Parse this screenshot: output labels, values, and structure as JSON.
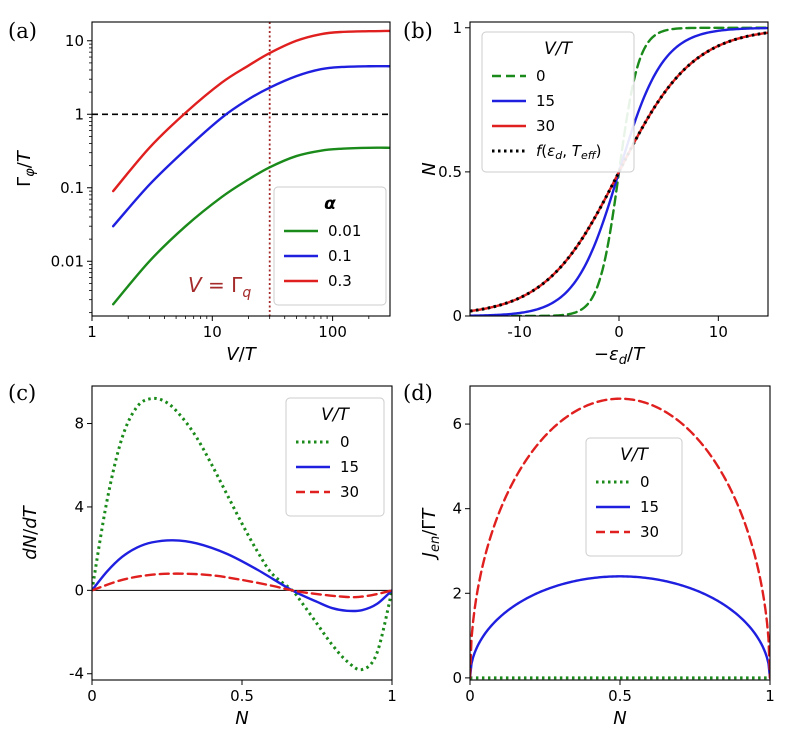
{
  "chart_data": [
    {
      "panel": "(a)",
      "type": "line",
      "xscale": "log",
      "yscale": "log",
      "xlabel": "V/T",
      "ylabel": "Γφ/T",
      "xlim": [
        1,
        300
      ],
      "ylim": [
        0.0018,
        18
      ],
      "xticks": [
        {
          "v": 1,
          "label": "1"
        },
        {
          "v": 10,
          "label": "10"
        },
        {
          "v": 100,
          "label": "100"
        }
      ],
      "yticks": [
        {
          "v": 0.01,
          "label": "0.01"
        },
        {
          "v": 0.1,
          "label": "0.1"
        },
        {
          "v": 1,
          "label": "1"
        },
        {
          "v": 10,
          "label": "10"
        }
      ],
      "hline": {
        "y": 1,
        "style": "dashed",
        "color": "#000000"
      },
      "vline": {
        "x": 30,
        "style": "dotted",
        "color": "#a52a2a"
      },
      "annotation": {
        "text": "V = Γq",
        "color": "#a52a2a"
      },
      "legend": {
        "title": "α",
        "position": "lower right"
      },
      "series": [
        {
          "name": "0.01",
          "color": "#1a8a1a",
          "style": "solid",
          "x": [
            1.5,
            3,
            6,
            12,
            20,
            30,
            50,
            80,
            120,
            200,
            300
          ],
          "y": [
            0.0026,
            0.01,
            0.03,
            0.075,
            0.13,
            0.19,
            0.27,
            0.32,
            0.34,
            0.35,
            0.35
          ]
        },
        {
          "name": "0.1",
          "color": "#1f1fe0",
          "style": "solid",
          "x": [
            1.5,
            3,
            6,
            12,
            20,
            30,
            50,
            80,
            120,
            200,
            300
          ],
          "y": [
            0.03,
            0.11,
            0.33,
            0.9,
            1.6,
            2.3,
            3.3,
            4.1,
            4.4,
            4.5,
            4.5
          ]
        },
        {
          "name": "0.3",
          "color": "#e01f1f",
          "style": "solid",
          "x": [
            1.5,
            3,
            6,
            12,
            20,
            30,
            50,
            80,
            120,
            200,
            300
          ],
          "y": [
            0.09,
            0.35,
            1.05,
            2.7,
            4.6,
            6.8,
            10,
            12.3,
            13.2,
            13.5,
            13.6
          ]
        }
      ]
    },
    {
      "panel": "(b)",
      "type": "line",
      "xlabel": "−εd/T",
      "ylabel": "N",
      "xlim": [
        -15,
        15
      ],
      "ylim": [
        0,
        1.02
      ],
      "xticks": [
        {
          "v": -10,
          "label": "-10"
        },
        {
          "v": 0,
          "label": "0"
        },
        {
          "v": 10,
          "label": "10"
        }
      ],
      "yticks": [
        {
          "v": 0,
          "label": "0"
        },
        {
          "v": 0.5,
          "label": "0.5"
        },
        {
          "v": 1,
          "label": "1"
        }
      ],
      "legend": {
        "title": "V/T",
        "position": "upper left"
      },
      "series": [
        {
          "name": "0",
          "color": "#1a8a1a",
          "style": "dashed",
          "fn": "fermi",
          "T": 1
        },
        {
          "name": "15",
          "color": "#1f1fe0",
          "style": "solid",
          "fn": "fermi",
          "T": 2.2
        },
        {
          "name": "30",
          "color": "#e01f1f",
          "style": "solid",
          "fn": "fermi",
          "T": 3.7
        },
        {
          "name": "f(εd, Teff)",
          "color": "#000000",
          "style": "dotted",
          "fn": "fermi",
          "T": 3.7
        }
      ]
    },
    {
      "panel": "(c)",
      "type": "line",
      "xlabel": "N",
      "ylabel": "dN/dT",
      "xlim": [
        0,
        1
      ],
      "ylim": [
        -4.3,
        9.8
      ],
      "xticks": [
        {
          "v": 0,
          "label": "0"
        },
        {
          "v": 0.5,
          "label": "0.5"
        },
        {
          "v": 1,
          "label": "1"
        }
      ],
      "yticks": [
        {
          "v": -4,
          "label": "-4"
        },
        {
          "v": 0,
          "label": "0"
        },
        {
          "v": 4,
          "label": "4"
        },
        {
          "v": 8,
          "label": "8"
        }
      ],
      "hline": {
        "y": 0,
        "style": "solid",
        "color": "#000000"
      },
      "legend": {
        "title": "V/T",
        "position": "upper right"
      },
      "series": [
        {
          "name": "0",
          "color": "#1a8a1a",
          "style": "dotted",
          "x": [
            0,
            0.05,
            0.1,
            0.15,
            0.2,
            0.25,
            0.3,
            0.35,
            0.4,
            0.45,
            0.5,
            0.55,
            0.6,
            0.667,
            0.7,
            0.75,
            0.8,
            0.85,
            0.9,
            0.95,
            1
          ],
          "y": [
            0,
            4.3,
            7.3,
            8.8,
            9.2,
            9.0,
            8.3,
            7.3,
            6.0,
            4.6,
            3.2,
            1.9,
            0.8,
            0,
            -0.6,
            -1.6,
            -2.6,
            -3.4,
            -3.8,
            -3.0,
            0
          ]
        },
        {
          "name": "15",
          "color": "#1f1fe0",
          "style": "solid",
          "x": [
            0,
            0.05,
            0.1,
            0.15,
            0.2,
            0.27,
            0.35,
            0.45,
            0.55,
            0.667,
            0.75,
            0.8,
            0.85,
            0.9,
            0.95,
            1
          ],
          "y": [
            0,
            0.9,
            1.6,
            2.05,
            2.3,
            2.4,
            2.25,
            1.75,
            1.0,
            0,
            -0.55,
            -0.85,
            -0.98,
            -0.95,
            -0.65,
            0
          ]
        },
        {
          "name": "30",
          "color": "#e01f1f",
          "style": "dashed",
          "x": [
            0,
            0.1,
            0.2,
            0.3,
            0.4,
            0.5,
            0.6,
            0.667,
            0.75,
            0.85,
            0.9,
            0.95,
            1
          ],
          "y": [
            0,
            0.5,
            0.75,
            0.8,
            0.72,
            0.5,
            0.22,
            0,
            -0.18,
            -0.32,
            -0.3,
            -0.18,
            0
          ]
        }
      ]
    },
    {
      "panel": "(d)",
      "type": "line",
      "xlabel": "N",
      "ylabel": "Jen/ΓT",
      "xlim": [
        0,
        1
      ],
      "ylim": [
        -0.05,
        6.9
      ],
      "xticks": [
        {
          "v": 0,
          "label": "0"
        },
        {
          "v": 0.5,
          "label": "0.5"
        },
        {
          "v": 1,
          "label": "1"
        }
      ],
      "yticks": [
        {
          "v": 0,
          "label": "0"
        },
        {
          "v": 2,
          "label": "2"
        },
        {
          "v": 4,
          "label": "4"
        },
        {
          "v": 6,
          "label": "6"
        }
      ],
      "legend": {
        "title": "V/T",
        "position": "center"
      },
      "series": [
        {
          "name": "0",
          "color": "#1a8a1a",
          "style": "dotted",
          "x": [
            0,
            1
          ],
          "y": [
            0,
            0
          ]
        },
        {
          "name": "15",
          "color": "#1f1fe0",
          "style": "solid",
          "fn": "dome",
          "peak": 2.4
        },
        {
          "name": "30",
          "color": "#e01f1f",
          "style": "dashed",
          "fn": "dome",
          "peak": 6.6
        }
      ]
    }
  ]
}
